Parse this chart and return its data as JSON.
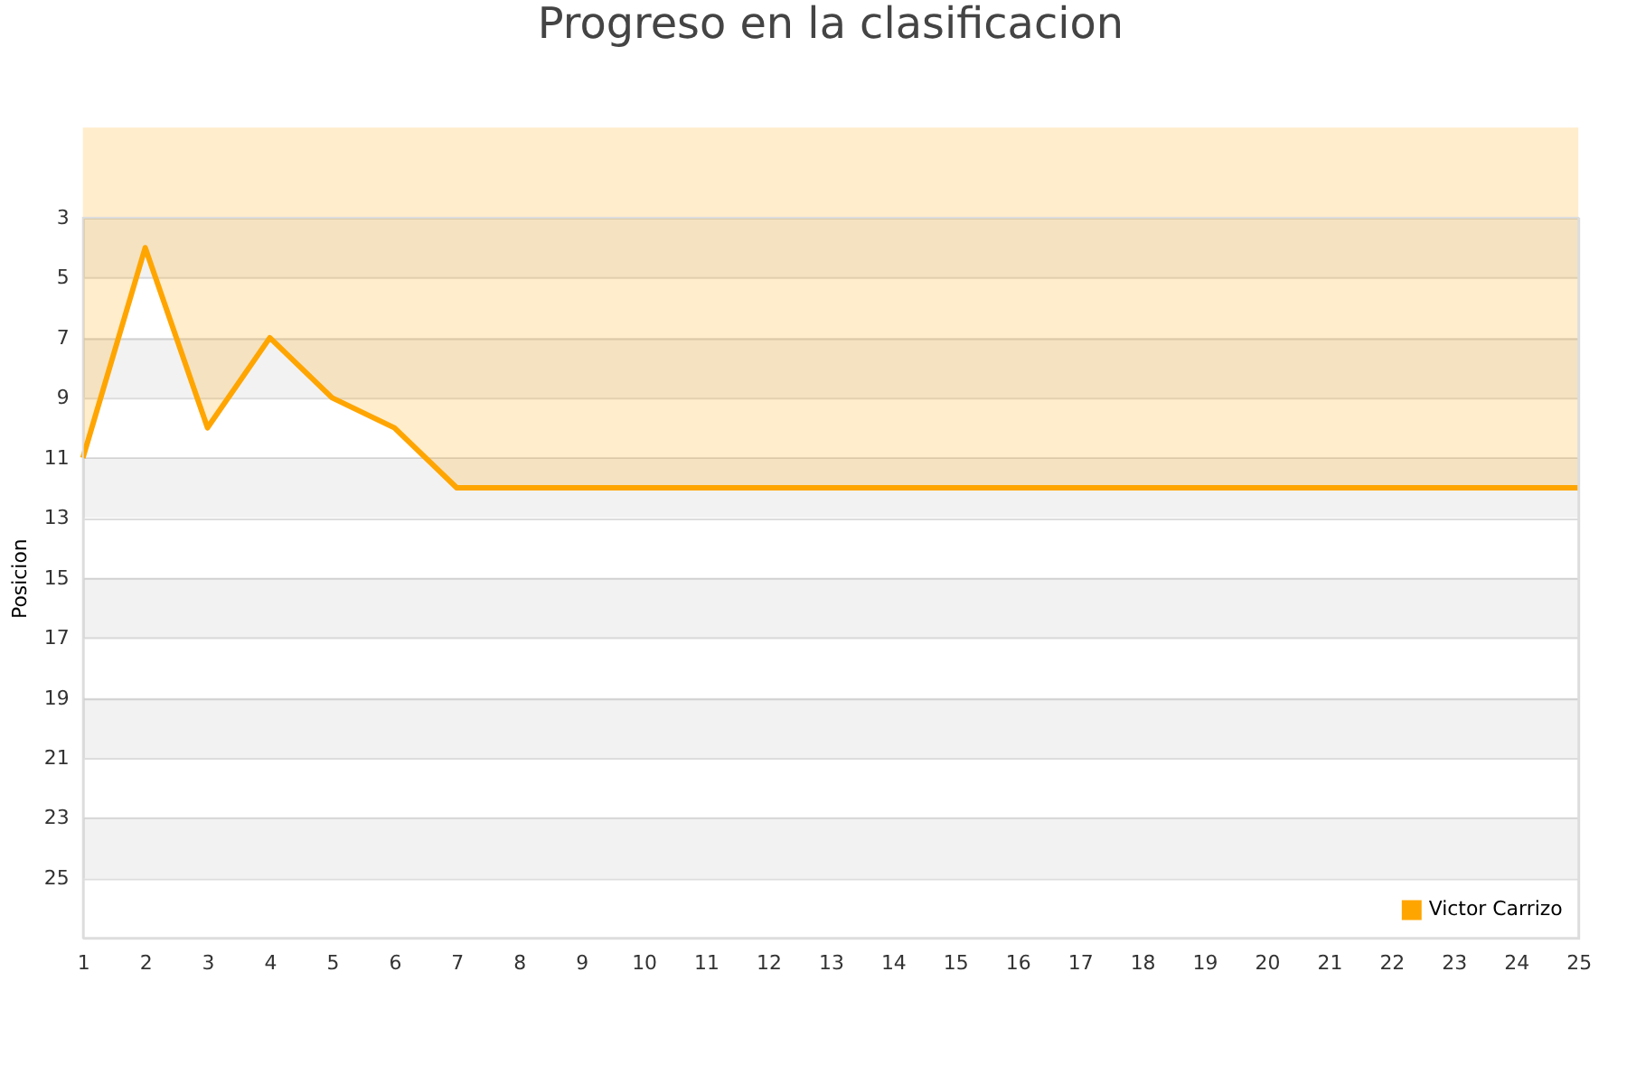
{
  "chart_data": {
    "type": "area",
    "title": "Progreso en la clasificacion",
    "ylabel": "Posicion",
    "x": [
      1,
      2,
      3,
      4,
      5,
      6,
      7,
      8,
      9,
      10,
      11,
      12,
      13,
      14,
      15,
      16,
      17,
      18,
      19,
      20,
      21,
      22,
      23,
      24,
      25
    ],
    "series": [
      {
        "name": "Victor Carrizo",
        "color": "#ffa500",
        "values": [
          11,
          4,
          10,
          7,
          9,
          10,
          12,
          12,
          12,
          12,
          12,
          12,
          12,
          12,
          12,
          12,
          12,
          12,
          12,
          12,
          12,
          12,
          12,
          12,
          12
        ]
      }
    ],
    "xlim": [
      1,
      25
    ],
    "xticks": [
      1,
      2,
      3,
      4,
      5,
      6,
      7,
      8,
      9,
      10,
      11,
      12,
      13,
      14,
      15,
      16,
      17,
      18,
      19,
      20,
      21,
      22,
      23,
      24,
      25
    ],
    "ylim": [
      27,
      3
    ],
    "yticks": [
      3,
      5,
      7,
      9,
      11,
      13,
      15,
      17,
      19,
      21,
      23,
      25
    ],
    "grid": "y",
    "legend": "bottom right",
    "marker": "none",
    "line_style": "solid"
  }
}
